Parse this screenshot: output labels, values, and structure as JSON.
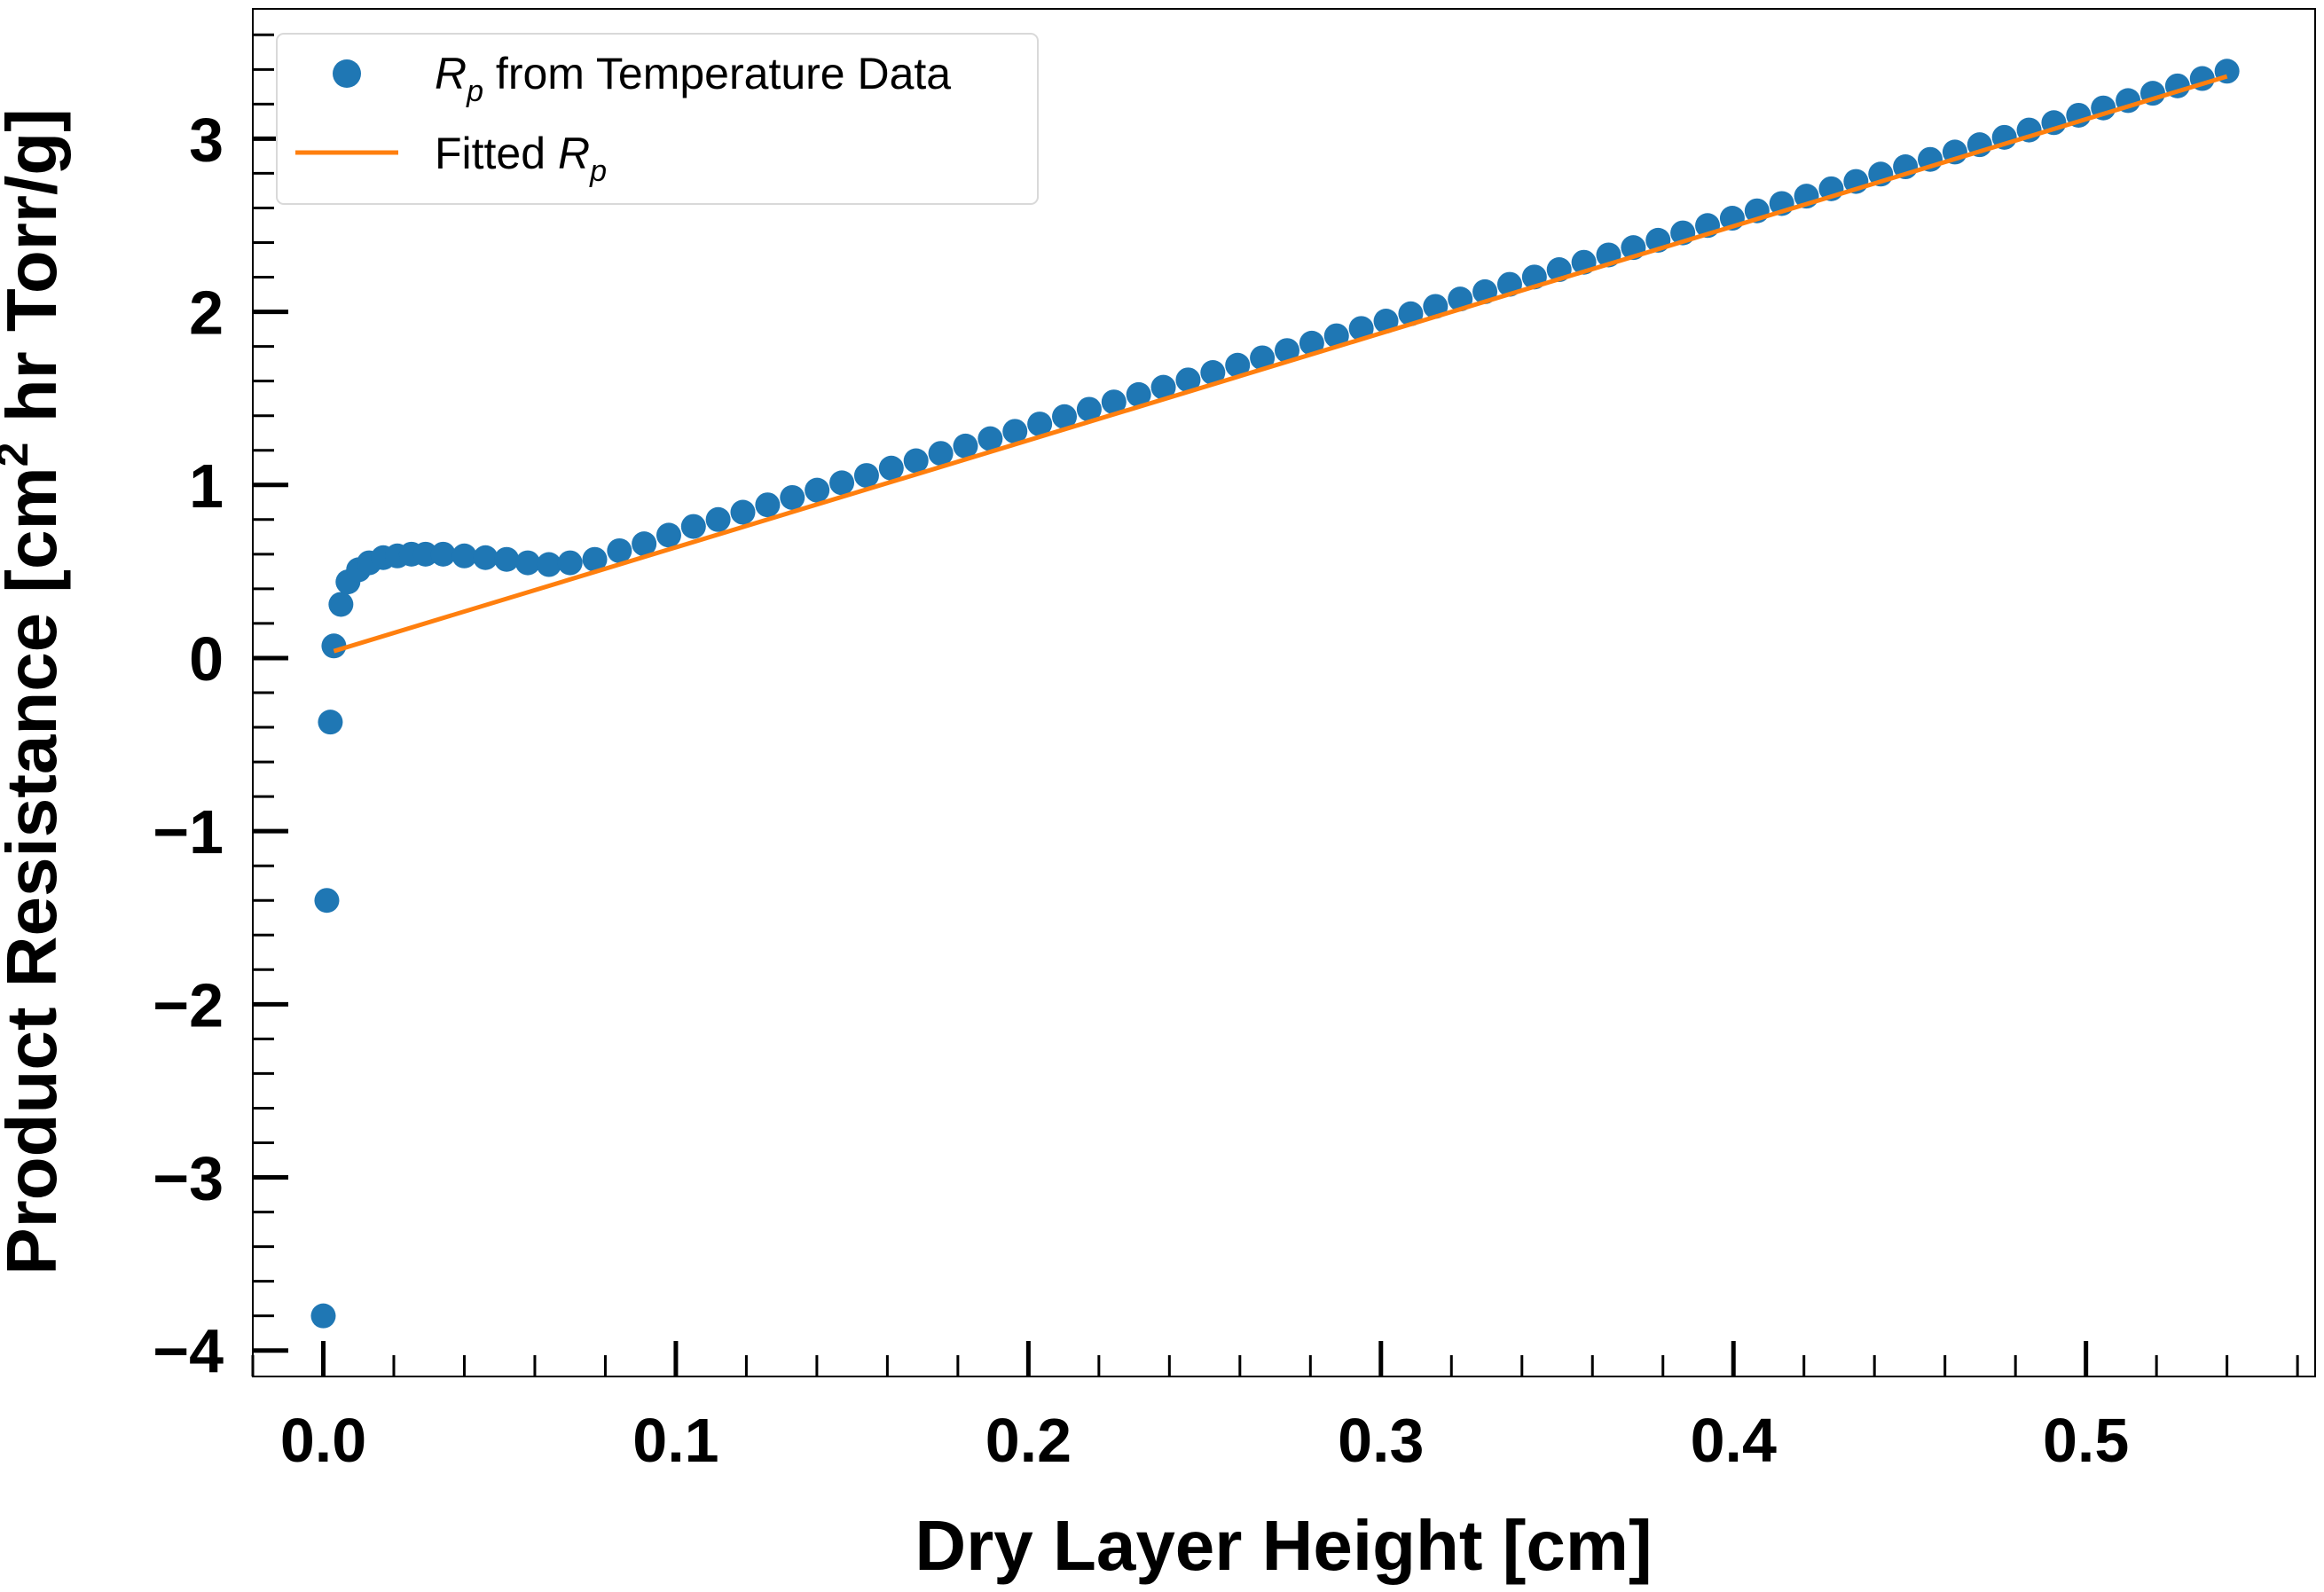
{
  "chart_data": {
    "type": "scatter",
    "xlabel": "Dry Layer Height [cm]",
    "ylabel": {
      "prefix": "Product Resistance [cm",
      "sup": "2",
      "suffix": " hr Torr/g]"
    },
    "xlim": [
      -0.02,
      0.565
    ],
    "ylim": [
      -4.15,
      3.75
    ],
    "x_ticks": [
      0.0,
      0.1,
      0.2,
      0.3,
      0.4,
      0.5
    ],
    "x_tick_labels": [
      "0.0",
      "0.1",
      "0.2",
      "0.3",
      "0.4",
      "0.5"
    ],
    "y_ticks": [
      -4,
      -3,
      -2,
      -1,
      0,
      1,
      2,
      3
    ],
    "y_tick_labels": [
      "−4",
      "−3",
      "−2",
      "−1",
      "0",
      "1",
      "2",
      "3"
    ],
    "grid": false,
    "legend": {
      "position": "top-left",
      "entries": [
        {
          "symbol": "R",
          "subscript": "p",
          "text": " from Temperature Data",
          "marker": "circle",
          "color": "#1f77b4"
        },
        {
          "text": "Fitted ",
          "symbol": "R",
          "subscript": "p",
          "marker": "line",
          "color": "#ff7f0e"
        }
      ]
    },
    "series": [
      {
        "name": "Rp from Temperature Data",
        "type": "scatter",
        "color": "#1f77b4",
        "points": [
          [
            0.0,
            -3.8
          ],
          [
            0.001,
            -1.4
          ],
          [
            0.002,
            -0.37
          ],
          [
            0.003,
            0.07
          ],
          [
            0.005,
            0.31
          ],
          [
            0.007,
            0.44
          ],
          [
            0.01,
            0.51
          ],
          [
            0.013,
            0.55
          ],
          [
            0.017,
            0.58
          ],
          [
            0.021,
            0.59
          ],
          [
            0.025,
            0.6
          ],
          [
            0.029,
            0.6
          ],
          [
            0.034,
            0.6
          ],
          [
            0.04,
            0.59
          ],
          [
            0.046,
            0.58
          ],
          [
            0.052,
            0.57
          ],
          [
            0.058,
            0.55
          ],
          [
            0.064,
            0.54
          ],
          [
            0.07,
            0.55
          ],
          [
            0.077,
            0.57
          ],
          [
            0.084,
            0.62
          ],
          [
            0.091,
            0.66
          ],
          [
            0.098,
            0.71
          ],
          [
            0.105,
            0.76
          ]
        ],
        "line_segment": {
          "x_start": 0.112,
          "x_end": 0.54,
          "y_start": 0.8,
          "y_end": 3.39,
          "n_points": 62
        }
      },
      {
        "name": "Fitted Rp",
        "type": "line",
        "color": "#ff7f0e",
        "x": [
          0.003,
          0.54
        ],
        "y": [
          0.04,
          3.36
        ]
      }
    ]
  }
}
